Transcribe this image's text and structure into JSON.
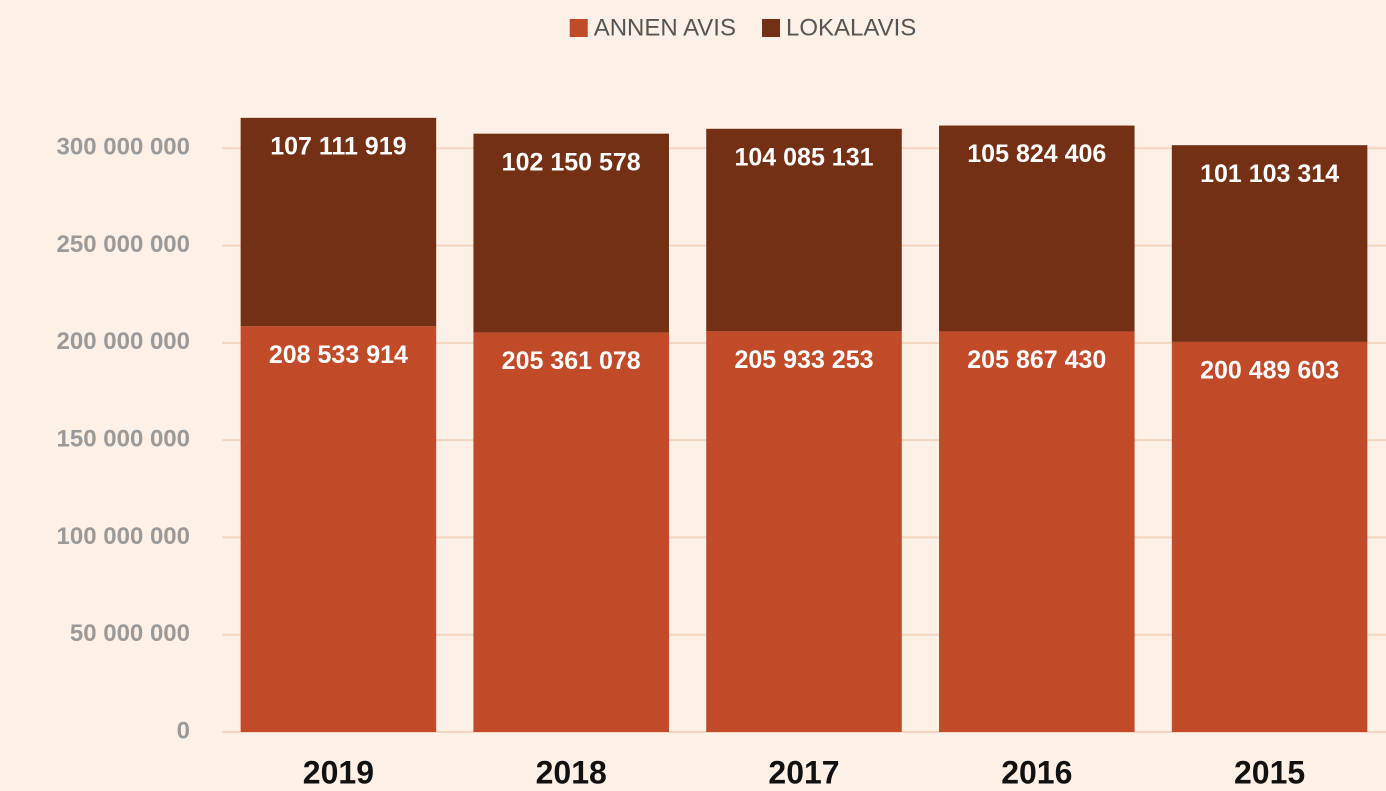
{
  "chart_data": {
    "type": "stacked_bar",
    "categories": [
      "2019",
      "2018",
      "2017",
      "2016",
      "2015"
    ],
    "series": [
      {
        "name": "ANNEN AVIS",
        "color": "#c14a28",
        "values": [
          208533914,
          205361078,
          205933253,
          205867430,
          200489603
        ],
        "value_labels": [
          "208 533 914",
          "205 361 078",
          "205 933 253",
          "205 867 430",
          "200 489 603"
        ]
      },
      {
        "name": "LOKALAVIS",
        "color": "#733015",
        "values": [
          107111919,
          102150578,
          104085131,
          105824406,
          101103314
        ],
        "value_labels": [
          "107 111 919",
          "102 150 578",
          "104 085 131",
          "105 824 406",
          "101 103 314"
        ]
      }
    ],
    "ylim": [
      0,
      350000000
    ],
    "yticks": [
      0,
      {
        "value": 50000000,
        "label": "50 000 000"
      },
      {
        "value": 100000000,
        "label": "100 000 000"
      },
      {
        "value": 150000000,
        "label": "150 000 000"
      },
      {
        "value": 200000000,
        "label": "200 000 000"
      },
      {
        "value": 250000000,
        "label": "250 000 000"
      },
      {
        "value": 300000000,
        "label": "300 000 000"
      }
    ],
    "grid": true,
    "legend": "top"
  }
}
